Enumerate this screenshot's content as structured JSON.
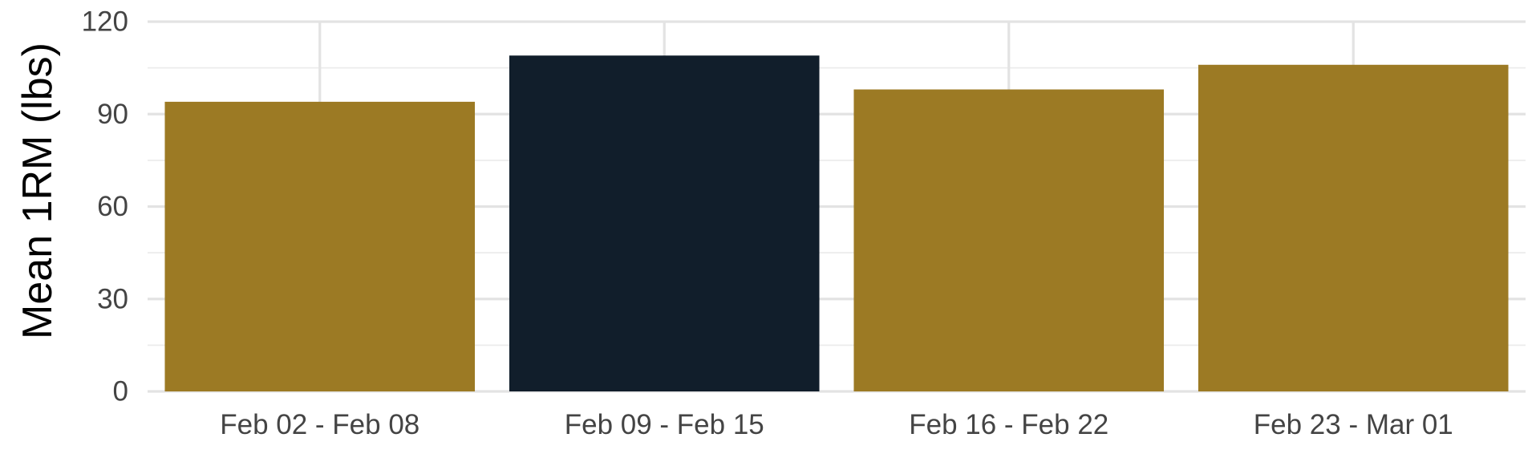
{
  "chart_data": {
    "type": "bar",
    "title": "",
    "xlabel": "",
    "ylabel": "Mean 1RM (lbs)",
    "categories": [
      "Feb 02 - Feb 08",
      "Feb 09 - Feb 15",
      "Feb 16 - Feb 22",
      "Feb 23 - Mar 01"
    ],
    "values": [
      94,
      109,
      98,
      106
    ],
    "highlight_index": 1,
    "colors": {
      "default_bar": "#9c7a24",
      "highlight_bar": "#111e2b",
      "grid": "#e3e3e3",
      "tick_text": "#444444",
      "axis_title": "#000000"
    },
    "ylim": [
      0,
      120
    ],
    "yticks": [
      0,
      30,
      60,
      90,
      120
    ],
    "grid": true,
    "legend": "none"
  }
}
